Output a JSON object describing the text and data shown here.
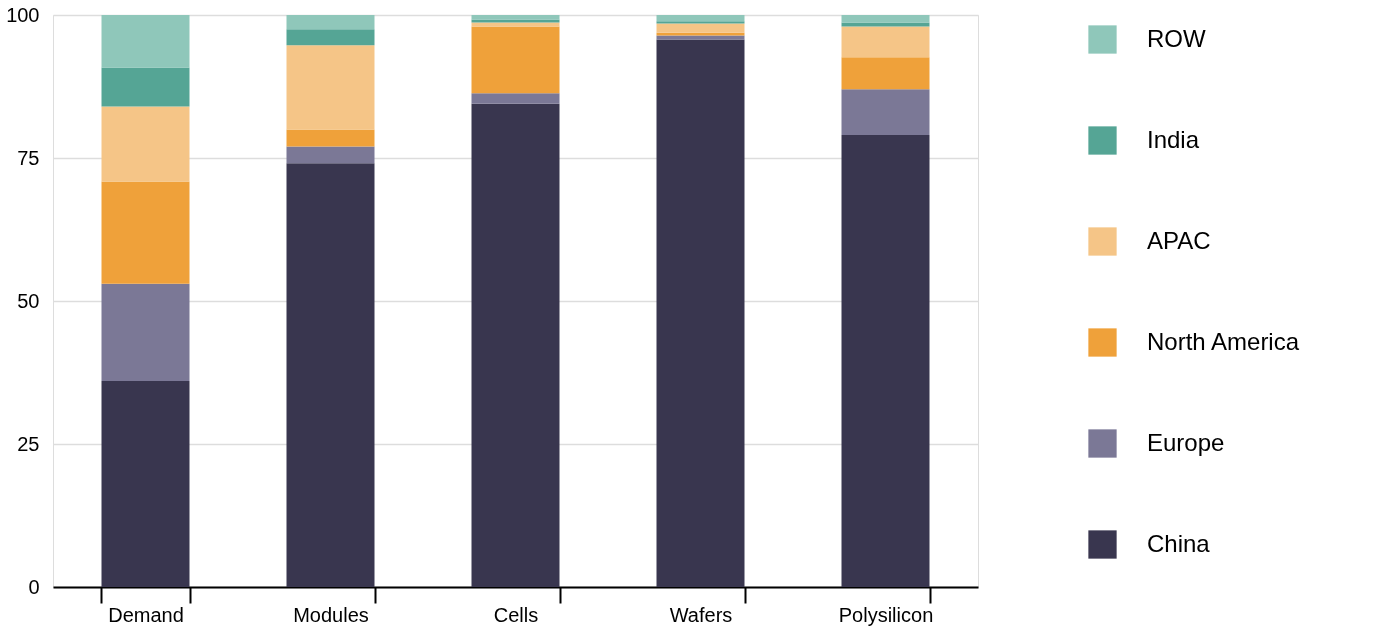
{
  "chart_data": {
    "type": "bar",
    "stacked": true,
    "categories": [
      "Demand",
      "Modules",
      "Cells",
      "Wafers",
      "Polysilicon"
    ],
    "series": [
      {
        "name": "China",
        "color": "#39364f",
        "values": [
          36.0,
          74.1,
          84.5,
          95.7,
          79.0
        ]
      },
      {
        "name": "Europe",
        "color": "#7b7896",
        "values": [
          17.0,
          2.9,
          1.8,
          0.7,
          8.0
        ]
      },
      {
        "name": "North America",
        "color": "#efa13a",
        "values": [
          17.9,
          3.0,
          11.7,
          0.5,
          5.6
        ]
      },
      {
        "name": "APAC",
        "color": "#f5c587",
        "values": [
          13.1,
          14.7,
          0.7,
          1.6,
          5.4
        ]
      },
      {
        "name": "India",
        "color": "#55a595",
        "values": [
          6.8,
          2.8,
          0.5,
          0.4,
          0.7
        ]
      },
      {
        "name": "ROW",
        "color": "#8fc7ba",
        "values": [
          9.2,
          2.5,
          0.8,
          1.1,
          1.3
        ]
      }
    ],
    "ylim": [
      0,
      100
    ],
    "yticks": [
      0,
      25,
      50,
      75,
      100
    ],
    "grid": "y",
    "legend": "right"
  }
}
